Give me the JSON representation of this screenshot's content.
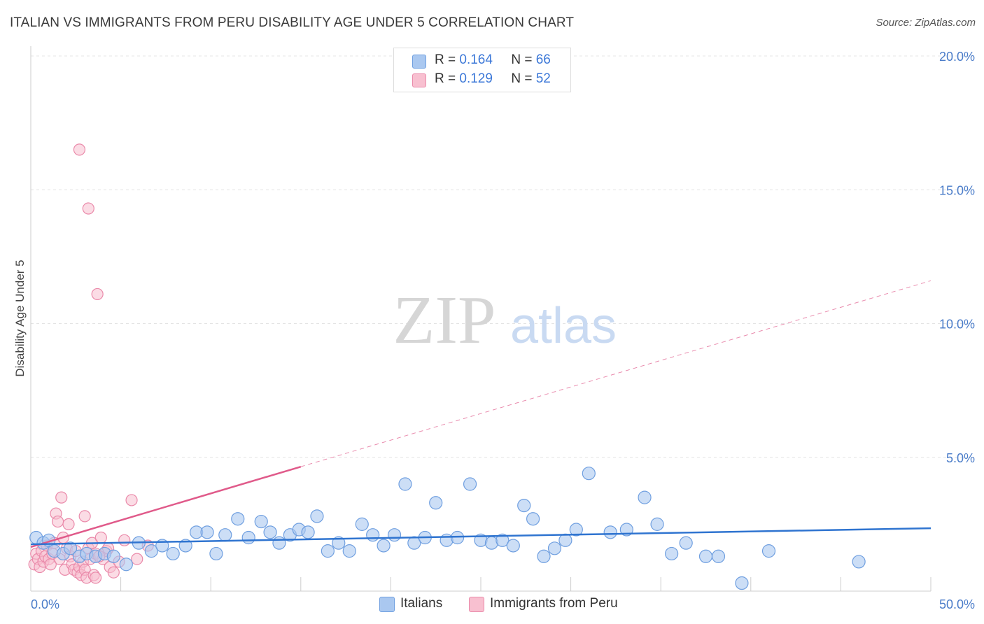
{
  "title": "ITALIAN VS IMMIGRANTS FROM PERU DISABILITY AGE UNDER 5 CORRELATION CHART",
  "source": "Source: ZipAtlas.com",
  "watermark": {
    "zip": "ZIP",
    "atlas": "atlas"
  },
  "legend": [
    {
      "r_label": "R =",
      "r_value": "0.164",
      "n_label": "N =",
      "n_value": "66"
    },
    {
      "r_label": "R =",
      "r_value": "0.129",
      "n_label": "N =",
      "n_value": "52"
    }
  ],
  "bottom_legend": {
    "italians": "Italians",
    "peru": "Immigrants from Peru"
  },
  "colors": {
    "blue_fill": "#aac8f0",
    "blue_stroke": "#6f9fe0",
    "blue_line": "#2f74d0",
    "pink_fill": "#f8c0d0",
    "pink_stroke": "#ea8aaa",
    "pink_line": "#e05a8a",
    "grid": "#e4e4e4",
    "axis_text": "#4a7cc9"
  },
  "chart_data": {
    "type": "scatter",
    "title": "ITALIAN VS IMMIGRANTS FROM PERU DISABILITY AGE UNDER 5 CORRELATION CHART",
    "xlabel": "",
    "ylabel": "Disability Age Under 5",
    "xlim": [
      0,
      50
    ],
    "ylim": [
      0,
      20.5
    ],
    "x_tick_labels": [
      "0.0%",
      "50.0%"
    ],
    "y_ticks": [
      5,
      10,
      15,
      20
    ],
    "y_tick_labels": [
      "5.0%",
      "10.0%",
      "15.0%",
      "20.0%"
    ],
    "grid": true,
    "series": [
      {
        "name": "Italians",
        "r": 0.164,
        "n": 66,
        "trend": {
          "x": [
            0,
            50
          ],
          "y": [
            1.75,
            2.35
          ],
          "style": "solid"
        },
        "points": [
          [
            0.3,
            2.0
          ],
          [
            0.7,
            1.8
          ],
          [
            1.0,
            1.9
          ],
          [
            1.3,
            1.5
          ],
          [
            1.8,
            1.4
          ],
          [
            2.2,
            1.6
          ],
          [
            2.7,
            1.3
          ],
          [
            3.1,
            1.4
          ],
          [
            3.6,
            1.3
          ],
          [
            4.1,
            1.4
          ],
          [
            4.6,
            1.3
          ],
          [
            5.3,
            1.0
          ],
          [
            6.0,
            1.8
          ],
          [
            6.7,
            1.5
          ],
          [
            7.3,
            1.7
          ],
          [
            7.9,
            1.4
          ],
          [
            8.6,
            1.7
          ],
          [
            9.2,
            2.2
          ],
          [
            9.8,
            2.2
          ],
          [
            10.3,
            1.4
          ],
          [
            10.8,
            2.1
          ],
          [
            11.5,
            2.7
          ],
          [
            12.1,
            2.0
          ],
          [
            12.8,
            2.6
          ],
          [
            13.3,
            2.2
          ],
          [
            13.8,
            1.8
          ],
          [
            14.4,
            2.1
          ],
          [
            14.9,
            2.3
          ],
          [
            15.4,
            2.2
          ],
          [
            15.9,
            2.8
          ],
          [
            16.5,
            1.5
          ],
          [
            17.1,
            1.8
          ],
          [
            17.7,
            1.5
          ],
          [
            18.4,
            2.5
          ],
          [
            19.0,
            2.1
          ],
          [
            19.6,
            1.7
          ],
          [
            20.2,
            2.1
          ],
          [
            20.8,
            4.0
          ],
          [
            21.3,
            1.8
          ],
          [
            21.9,
            2.0
          ],
          [
            22.5,
            3.3
          ],
          [
            23.1,
            1.9
          ],
          [
            23.7,
            2.0
          ],
          [
            24.4,
            4.0
          ],
          [
            25.0,
            1.9
          ],
          [
            25.6,
            1.8
          ],
          [
            26.2,
            1.9
          ],
          [
            26.8,
            1.7
          ],
          [
            27.4,
            3.2
          ],
          [
            27.9,
            2.7
          ],
          [
            28.5,
            1.3
          ],
          [
            29.1,
            1.6
          ],
          [
            29.7,
            1.9
          ],
          [
            30.3,
            2.3
          ],
          [
            31.0,
            4.4
          ],
          [
            32.2,
            2.2
          ],
          [
            33.1,
            2.3
          ],
          [
            34.1,
            3.5
          ],
          [
            34.8,
            2.5
          ],
          [
            35.6,
            1.4
          ],
          [
            36.4,
            1.8
          ],
          [
            37.5,
            1.3
          ],
          [
            38.2,
            1.3
          ],
          [
            39.5,
            0.3
          ],
          [
            41.0,
            1.5
          ],
          [
            46.0,
            1.1
          ]
        ]
      },
      {
        "name": "Immigrants from Peru",
        "r": 0.129,
        "n": 52,
        "trend": {
          "x": [
            0,
            15
          ],
          "y": [
            1.65,
            4.65
          ],
          "style": "solid"
        },
        "trend_extension": {
          "x": [
            15,
            50
          ],
          "y": [
            4.65,
            11.6
          ],
          "style": "dashed"
        },
        "points": [
          [
            0.2,
            1.0
          ],
          [
            0.3,
            1.4
          ],
          [
            0.4,
            1.2
          ],
          [
            0.5,
            0.9
          ],
          [
            0.6,
            1.5
          ],
          [
            0.7,
            1.1
          ],
          [
            0.8,
            1.3
          ],
          [
            0.9,
            1.7
          ],
          [
            1.0,
            1.2
          ],
          [
            1.1,
            1.0
          ],
          [
            1.2,
            1.4
          ],
          [
            1.3,
            1.8
          ],
          [
            1.4,
            2.9
          ],
          [
            1.5,
            2.6
          ],
          [
            1.6,
            1.2
          ],
          [
            1.7,
            3.5
          ],
          [
            1.8,
            2.0
          ],
          [
            1.9,
            0.8
          ],
          [
            2.0,
            1.6
          ],
          [
            2.1,
            2.5
          ],
          [
            2.2,
            1.3
          ],
          [
            2.3,
            1.0
          ],
          [
            2.4,
            0.8
          ],
          [
            2.5,
            1.5
          ],
          [
            2.6,
            0.7
          ],
          [
            2.7,
            0.9
          ],
          [
            2.8,
            0.6
          ],
          [
            2.9,
            1.1
          ],
          [
            3.0,
            0.8
          ],
          [
            3.1,
            0.5
          ],
          [
            3.2,
            1.6
          ],
          [
            3.3,
            1.2
          ],
          [
            3.4,
            1.8
          ],
          [
            3.5,
            0.6
          ],
          [
            3.6,
            1.4
          ],
          [
            2.7,
            16.5
          ],
          [
            3.2,
            14.3
          ],
          [
            3.7,
            11.1
          ],
          [
            4.0,
            1.2
          ],
          [
            4.2,
            1.5
          ],
          [
            4.4,
            0.9
          ],
          [
            4.6,
            0.7
          ],
          [
            4.9,
            1.1
          ],
          [
            5.2,
            1.9
          ],
          [
            5.6,
            3.4
          ],
          [
            3.8,
            1.3
          ],
          [
            3.9,
            2.0
          ],
          [
            3.0,
            2.8
          ],
          [
            5.9,
            1.2
          ],
          [
            6.5,
            1.7
          ],
          [
            3.6,
            0.5
          ],
          [
            4.3,
            1.6
          ]
        ]
      }
    ]
  }
}
